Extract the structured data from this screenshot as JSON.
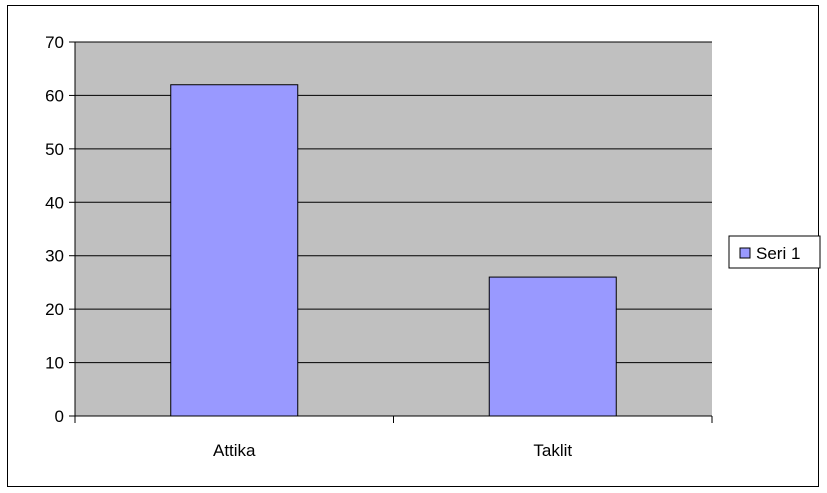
{
  "chart_data": {
    "type": "bar",
    "categories": [
      "Attika",
      "Taklit"
    ],
    "series": [
      {
        "name": "Seri 1",
        "values": [
          62,
          26
        ]
      }
    ],
    "ylim": [
      0,
      70
    ],
    "yticks": [
      0,
      10,
      20,
      30,
      40,
      50,
      60,
      70
    ],
    "grid": true,
    "legend_position": "right",
    "colors": {
      "plot_background": "#c0c0c0",
      "bar_fill": "#9999ff",
      "bar_stroke": "#000000",
      "gridline": "#000000"
    }
  }
}
